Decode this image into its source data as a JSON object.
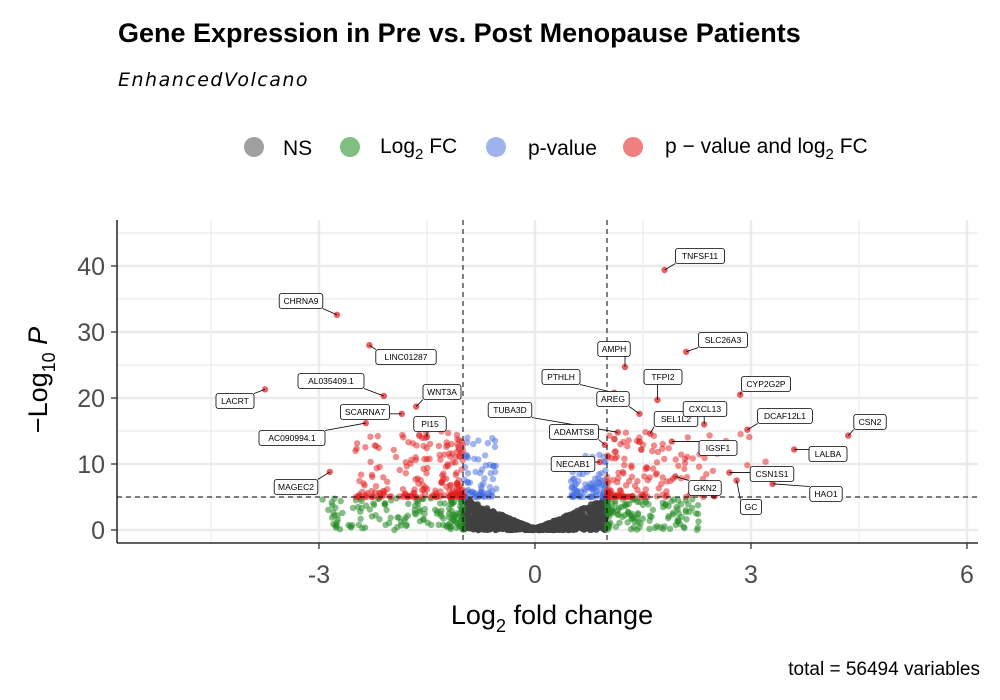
{
  "title": "Gene Expression in Pre vs. Post Menopause Patients",
  "subtitle": "EnhancedVolcano",
  "caption": "total = 56494 variables",
  "legend": [
    {
      "key": "ns",
      "label": "NS",
      "color": "#808080"
    },
    {
      "key": "fc",
      "label": "Log",
      "sub": "2",
      "suffix": " FC",
      "color": "#2e8b2e"
    },
    {
      "key": "p",
      "label": "p-value",
      "color": "#4169e1"
    },
    {
      "key": "both",
      "label": "p − value and log",
      "sub": "2",
      "suffix": " FC",
      "color": "#e0141e"
    }
  ],
  "chart_data": {
    "type": "scatter",
    "xlabel": {
      "main": "Log",
      "sub": "2",
      "suffix": " fold change"
    },
    "ylabel": {
      "prefix": "−Log",
      "sub": "10",
      "suffix": " P"
    },
    "xlim": [
      -5.8,
      6.2
    ],
    "ylim": [
      -2,
      47
    ],
    "x_ticks": [
      -3,
      0,
      3,
      6
    ],
    "x_tick_labels": [
      "-3",
      "0",
      "3",
      "6"
    ],
    "y_ticks": [
      0,
      10,
      20,
      30,
      40
    ],
    "y_tick_labels": [
      "0",
      "10",
      "20",
      "30",
      "40"
    ],
    "fc_cutoff": 1,
    "p_cutoff_neglog10": 5,
    "grid": true,
    "legend_position": "top",
    "colors": {
      "NS": "#404040",
      "FC": "#228b22",
      "P": "#4169e1",
      "FC_P": "#e31a1c"
    },
    "labeled_genes": [
      {
        "gene": "TNFSF11",
        "x": 1.8,
        "y": 39.4
      },
      {
        "gene": "CHRNA9",
        "x": -2.75,
        "y": 32.6
      },
      {
        "gene": "SLC26A3",
        "x": 2.1,
        "y": 27.0
      },
      {
        "gene": "AMPH",
        "x": 1.25,
        "y": 24.7
      },
      {
        "gene": "LINC01287",
        "x": -2.3,
        "y": 28.0
      },
      {
        "gene": "AL035409.1",
        "x": -2.1,
        "y": 20.3
      },
      {
        "gene": "LACRT",
        "x": -3.75,
        "y": 21.3
      },
      {
        "gene": "WNT3A",
        "x": -1.65,
        "y": 18.7
      },
      {
        "gene": "PTHLH",
        "x": 1.1,
        "y": 20.8
      },
      {
        "gene": "TFPI2",
        "x": 1.7,
        "y": 19.7
      },
      {
        "gene": "CYP2G2P",
        "x": 2.85,
        "y": 20.5
      },
      {
        "gene": "AREG",
        "x": 1.45,
        "y": 17.6
      },
      {
        "gene": "SCARNA7",
        "x": -1.85,
        "y": 17.6
      },
      {
        "gene": "TUBA3D",
        "x": 1.15,
        "y": 14.8
      },
      {
        "gene": "SEL1L2",
        "x": 1.6,
        "y": 14.6
      },
      {
        "gene": "CXCL13",
        "x": 2.35,
        "y": 16.0
      },
      {
        "gene": "DCAF12L1",
        "x": 2.95,
        "y": 15.2
      },
      {
        "gene": "CSN2",
        "x": 4.35,
        "y": 14.3
      },
      {
        "gene": "AC090994.1",
        "x": -2.35,
        "y": 16.2
      },
      {
        "gene": "PI15",
        "x": -1.5,
        "y": 14.1
      },
      {
        "gene": "ADAMTS8",
        "x": 0.97,
        "y": 12.9
      },
      {
        "gene": "IGSF1",
        "x": 1.9,
        "y": 13.4
      },
      {
        "gene": "LALBA",
        "x": 3.6,
        "y": 12.2
      },
      {
        "gene": "NECAB1",
        "x": 0.9,
        "y": 10.3
      },
      {
        "gene": "MAGEC2",
        "x": -2.85,
        "y": 8.8
      },
      {
        "gene": "CSN1S1",
        "x": 2.7,
        "y": 8.7
      },
      {
        "gene": "GKN2",
        "x": 1.95,
        "y": 8.1
      },
      {
        "gene": "HAO1",
        "x": 3.3,
        "y": 7.0
      },
      {
        "gene": "GC",
        "x": 2.8,
        "y": 7.5
      }
    ]
  }
}
